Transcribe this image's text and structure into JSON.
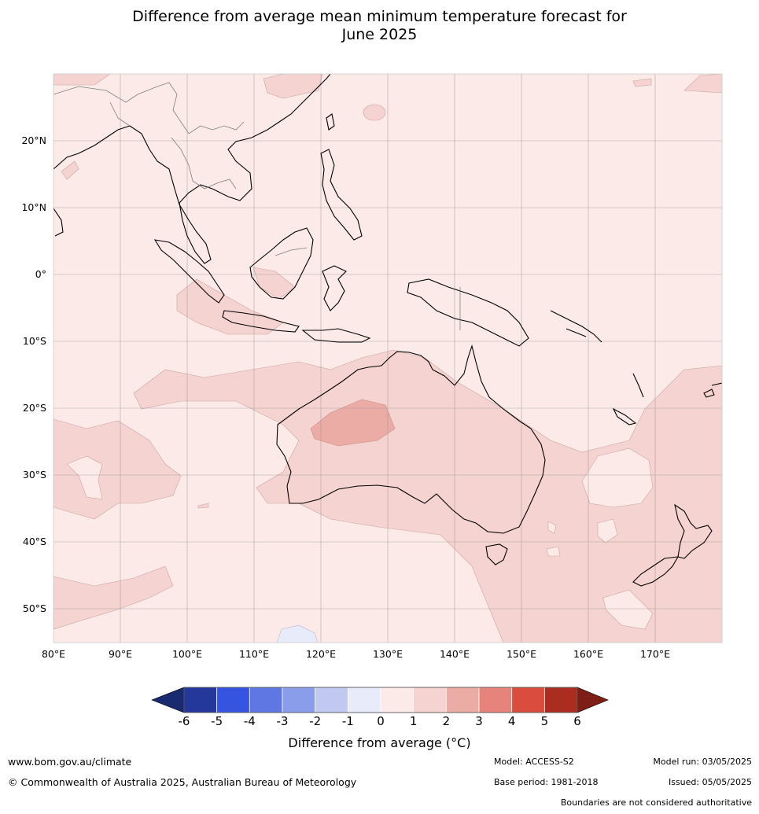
{
  "title": {
    "line1": "Difference from average mean minimum temperature forecast for",
    "line2": "June 2025"
  },
  "map": {
    "lon_range": [
      80,
      180
    ],
    "lat_range": [
      -55,
      30
    ],
    "lon_ticks": [
      "80°E",
      "90°E",
      "100°E",
      "110°E",
      "120°E",
      "130°E",
      "140°E",
      "150°E",
      "160°E",
      "170°E"
    ],
    "lat_ticks": [
      "20°N",
      "10°N",
      "0°",
      "10°S",
      "20°S",
      "30°S",
      "40°S",
      "50°S"
    ],
    "base_color": "#fbeae8"
  },
  "colorbar": {
    "labels": [
      "-6",
      "-5",
      "-4",
      "-3",
      "-2",
      "-1",
      "0",
      "1",
      "2",
      "3",
      "4",
      "5",
      "6"
    ],
    "colors": [
      "#24379a",
      "#3555e0",
      "#5e77e3",
      "#8a9dea",
      "#c1c8f1",
      "#e8ebfa",
      "#fbeae8",
      "#f5d3d0",
      "#ecaca6",
      "#e6837a",
      "#da4c3e",
      "#ab2d1f"
    ],
    "low_extend": "#1a2a70",
    "high_extend": "#7d1f17",
    "label": "Difference from average (°C)"
  },
  "footer": {
    "website": "www.bom.gov.au/climate",
    "copyright": "© Commonwealth of Australia 2025, Australian Bureau of Meteorology",
    "model": "Model: ACCESS-S2",
    "base_period": "Base period: 1981-2018",
    "model_run": "Model run: 03/05/2025",
    "issued": "Issued: 05/05/2025",
    "disclaimer": "Boundaries are not considered authoritative"
  }
}
